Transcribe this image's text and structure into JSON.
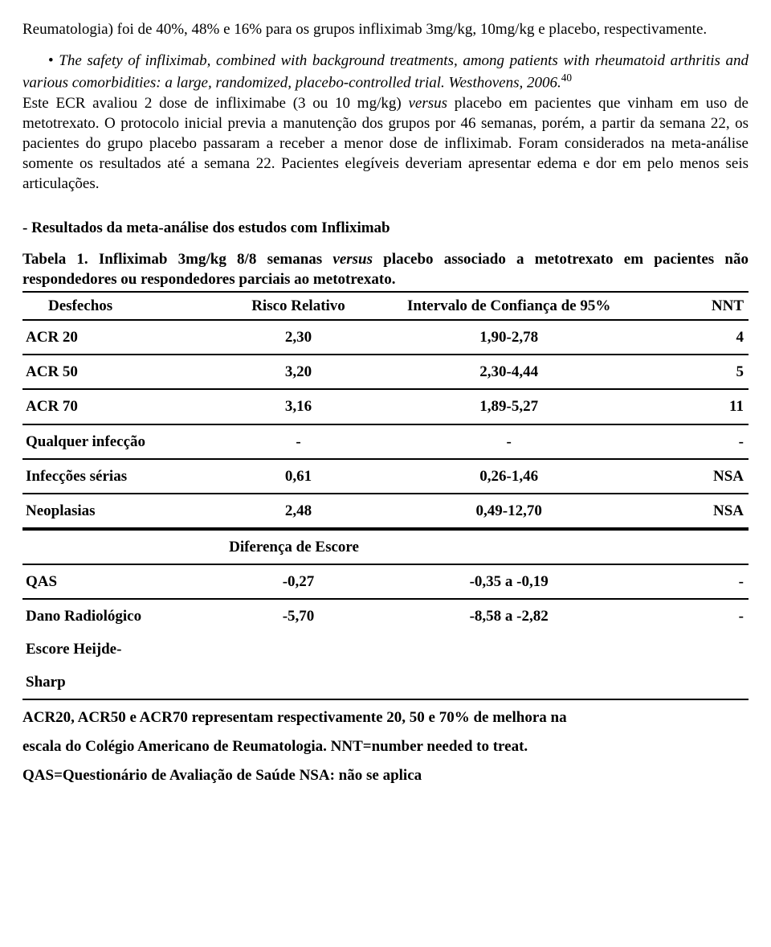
{
  "para1_a": "Reumatologia) foi de 40%, 48% e 16% para os grupos infliximab 3mg/kg, 10mg/kg e placebo, respectivamente.",
  "bullet": "• ",
  "cite_en": "The safety of infliximab, combined with background treatments, among patients with rheumatoid arthritis and various comorbidities: a large, randomized, placebo-controlled trial. Westhovens, 2006.",
  "cite_ref": "40",
  "para2": "Este ECR avaliou 2 dose de infliximabe (3 ou 10 mg/kg) ",
  "para2_it": "versus",
  "para2_b": " placebo em pacientes que vinham em uso de metotrexato. O protocolo inicial previa a manutenção dos grupos por 46 semanas, porém, a partir da semana 22, os pacientes do grupo placebo passaram a receber a menor dose de infliximab. Foram considerados na meta-análise somente os resultados até a semana 22. Pacientes elegíveis deveriam apresentar edema e dor em pelo menos seis articulações.",
  "section_heading": "- Resultados da meta-análise dos estudos com Infliximab",
  "table_title_a": "Tabela 1. Infliximab 3mg/kg 8/8 semanas ",
  "table_title_it": "versus",
  "table_title_b": " placebo associado a metotrexato em pacientes não respondedores ou respondedores parciais ao metotrexato.",
  "headers": {
    "desfechos": "Desfechos",
    "rr": "Risco Relativo",
    "ci": "Intervalo de Confiança de 95%",
    "nnt": "NNT"
  },
  "rows": [
    {
      "d": "ACR 20",
      "rr": "2,30",
      "ci": "1,90-2,78",
      "nnt": "4"
    },
    {
      "d": "ACR 50",
      "rr": "3,20",
      "ci": "2,30-4,44",
      "nnt": "5"
    },
    {
      "d": "ACR 70",
      "rr": "3,16",
      "ci": "1,89-5,27",
      "nnt": "11"
    },
    {
      "d": "Qualquer infecção",
      "rr": "-",
      "ci": "-",
      "nnt": "-"
    },
    {
      "d": "Infecções sérias",
      "rr": "0,61",
      "ci": "0,26-1,46",
      "nnt": "NSA"
    },
    {
      "d": "Neoplasias",
      "rr": "2,48",
      "ci": "0,49-12,70",
      "nnt": "NSA"
    }
  ],
  "subheader": "Diferença de Escore",
  "rows2": [
    {
      "d": "QAS",
      "rr": "-0,27",
      "ci": "-0,35 a -0,19",
      "nnt": "-"
    },
    {
      "d": "Dano Radiológico",
      "rr": "-5,70",
      "ci": "-8,58 a -2,82",
      "nnt": "-"
    },
    {
      "d": "Escore Heijde-",
      "rr": "",
      "ci": "",
      "nnt": ""
    },
    {
      "d": "Sharp",
      "rr": "",
      "ci": "",
      "nnt": ""
    }
  ],
  "foot1": "ACR20, ACR50 e ACR70 representam respectivamente 20, 50 e 70% de melhora na",
  "foot2": "escala do Colégio Americano de Reumatologia. NNT=number needed to treat.",
  "foot3": "QAS=Questionário de Avaliação de Saúde  NSA: não se aplica"
}
